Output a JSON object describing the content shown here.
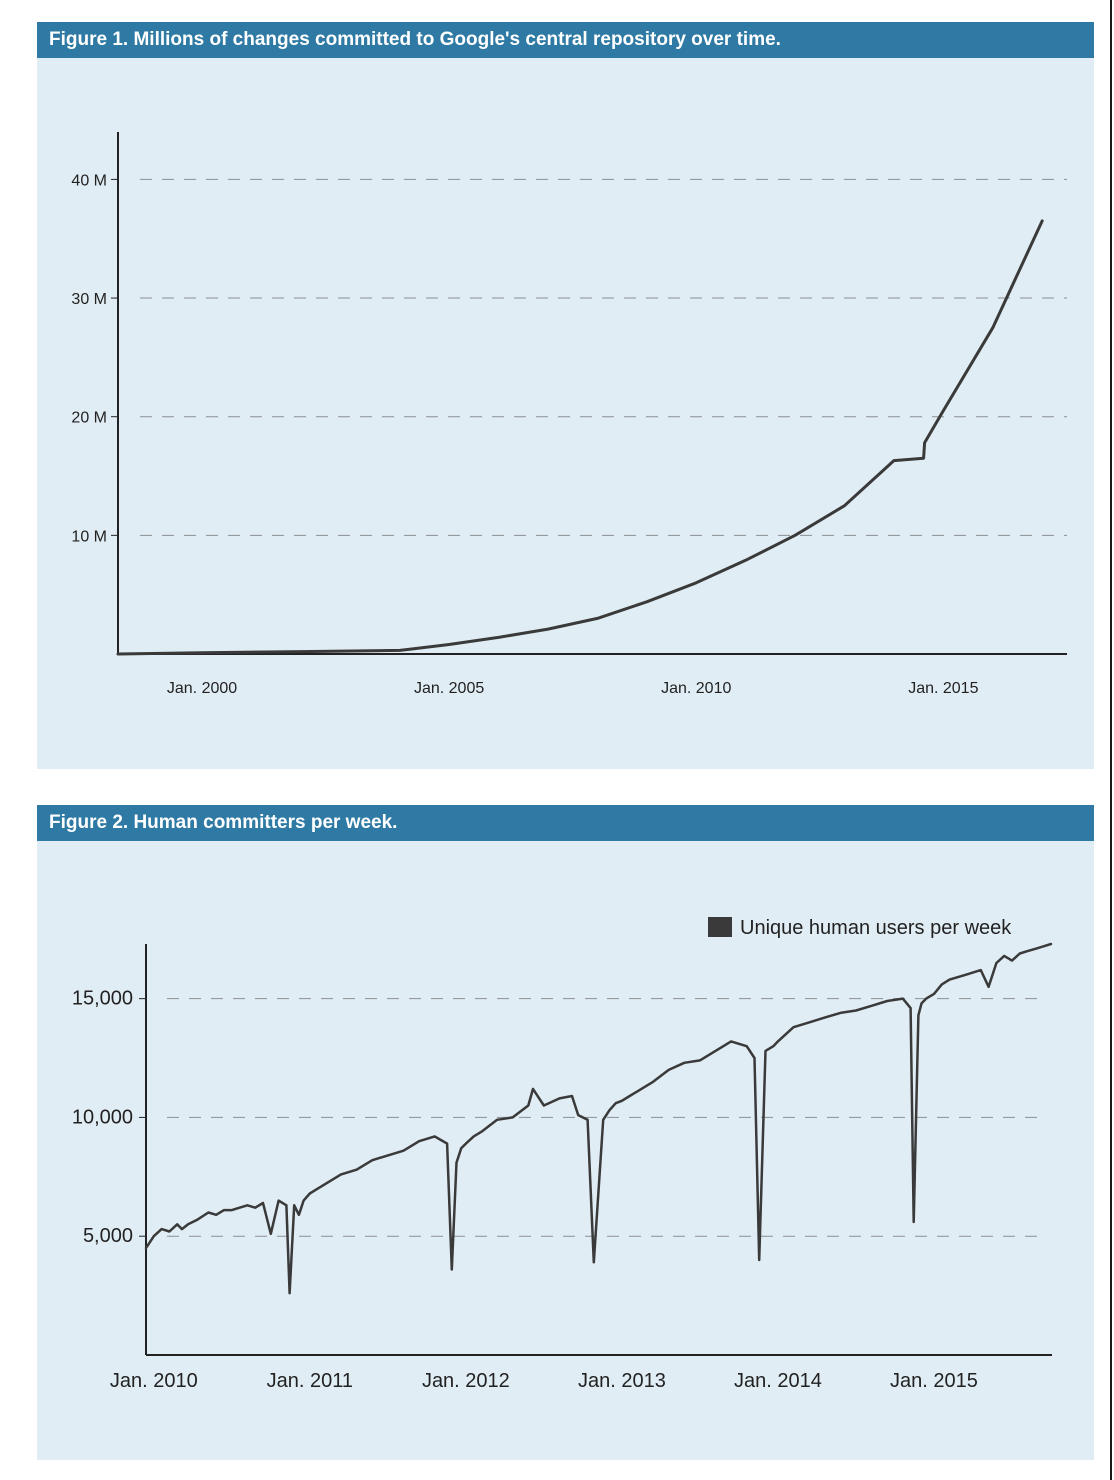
{
  "colors": {
    "header_bg": "#2f7aa4",
    "panel_bg": "#e1edf4",
    "line": "#3a3a3a",
    "grid": "#8a8f93",
    "legend_swatch": "#3a3a3a"
  },
  "chart_data": [
    {
      "type": "line",
      "title": "Figure 1. Millions of changes committed to Google's central repository over time.",
      "xlabel": "",
      "ylabel": "",
      "x_unit": "year",
      "xlim": [
        1998.3,
        2017.3
      ],
      "ylim": [
        0,
        44.5
      ],
      "x_ticks": [
        {
          "value": 2000,
          "label": "Jan. 2000"
        },
        {
          "value": 2005,
          "label": "Jan. 2005"
        },
        {
          "value": 2010,
          "label": "Jan. 2010"
        },
        {
          "value": 2015,
          "label": "Jan. 2015"
        }
      ],
      "y_ticks": [
        {
          "value": 10,
          "label": "10 M"
        },
        {
          "value": 20,
          "label": "20 M"
        },
        {
          "value": 30,
          "label": "30 M"
        },
        {
          "value": 40,
          "label": "40 M"
        }
      ],
      "grid": "horizontal-dashed",
      "series": [
        {
          "x": [
            1998.3,
            2000,
            2002,
            2004,
            2004.2,
            2005,
            2006,
            2007,
            2008,
            2009,
            2010,
            2011,
            2012,
            2013,
            2014,
            2014.6,
            2014.62,
            2015,
            2016,
            2017
          ],
          "y": [
            0,
            0.1,
            0.2,
            0.3,
            0.4,
            0.8,
            1.4,
            2.1,
            3.0,
            4.4,
            6.0,
            7.9,
            10.0,
            12.5,
            16.3,
            16.5,
            17.8,
            20.5,
            27.5,
            36.5
          ]
        }
      ]
    },
    {
      "type": "line",
      "title": "Figure 2. Human committers per week.",
      "xlabel": "",
      "ylabel": "",
      "x_unit": "year",
      "xlim": [
        2009.95,
        2015.75
      ],
      "ylim": [
        0,
        17300
      ],
      "x_ticks": [
        {
          "value": 2010,
          "label": "Jan. 2010"
        },
        {
          "value": 2011,
          "label": "Jan. 2011"
        },
        {
          "value": 2012,
          "label": "Jan. 2012"
        },
        {
          "value": 2013,
          "label": "Jan. 2013"
        },
        {
          "value": 2014,
          "label": "Jan. 2014"
        },
        {
          "value": 2015,
          "label": "Jan. 2015"
        }
      ],
      "y_ticks": [
        {
          "value": 5000,
          "label": "5,000"
        },
        {
          "value": 10000,
          "label": "10,000"
        },
        {
          "value": 15000,
          "label": "15,000"
        }
      ],
      "grid": "horizontal-dashed",
      "legend": {
        "position": "top-right",
        "entries": [
          "Unique human users per week"
        ]
      },
      "series": [
        {
          "name": "Unique human users per week",
          "x": [
            2009.95,
            2010.0,
            2010.05,
            2010.1,
            2010.15,
            2010.18,
            2010.22,
            2010.28,
            2010.35,
            2010.4,
            2010.45,
            2010.5,
            2010.55,
            2010.6,
            2010.65,
            2010.7,
            2010.75,
            2010.8,
            2010.85,
            2010.87,
            2010.9,
            2010.93,
            2010.96,
            2011.0,
            2011.05,
            2011.1,
            2011.2,
            2011.3,
            2011.4,
            2011.5,
            2011.6,
            2011.7,
            2011.8,
            2011.88,
            2011.91,
            2011.94,
            2011.97,
            2012.0,
            2012.05,
            2012.1,
            2012.2,
            2012.3,
            2012.4,
            2012.43,
            2012.47,
            2012.5,
            2012.6,
            2012.68,
            2012.72,
            2012.78,
            2012.82,
            2012.88,
            2012.92,
            2012.96,
            2013.0,
            2013.05,
            2013.1,
            2013.2,
            2013.3,
            2013.4,
            2013.5,
            2013.6,
            2013.7,
            2013.8,
            2013.85,
            2013.88,
            2013.92,
            2013.97,
            2014.0,
            2014.05,
            2014.1,
            2014.2,
            2014.3,
            2014.4,
            2014.5,
            2014.6,
            2014.7,
            2014.8,
            2014.85,
            2014.87,
            2014.9,
            2014.92,
            2014.95,
            2015.0,
            2015.05,
            2015.1,
            2015.2,
            2015.3,
            2015.35,
            2015.4,
            2015.45,
            2015.5,
            2015.55,
            2015.6,
            2015.65,
            2015.7,
            2015.75
          ],
          "y": [
            4500,
            5000,
            5300,
            5200,
            5500,
            5300,
            5500,
            5700,
            6000,
            5900,
            6100,
            6100,
            6200,
            6300,
            6200,
            6400,
            5100,
            6500,
            6300,
            2600,
            6300,
            5900,
            6500,
            6800,
            7000,
            7200,
            7600,
            7800,
            8200,
            8400,
            8600,
            9000,
            9200,
            8900,
            3600,
            8100,
            8700,
            8900,
            9200,
            9400,
            9900,
            10000,
            10500,
            11200,
            10800,
            10500,
            10800,
            10900,
            10100,
            9900,
            3900,
            9900,
            10300,
            10600,
            10700,
            10900,
            11100,
            11500,
            12000,
            12300,
            12400,
            12800,
            13200,
            13000,
            12500,
            4000,
            12800,
            13000,
            13200,
            13500,
            13800,
            14000,
            14200,
            14400,
            14500,
            14700,
            14900,
            15000,
            14600,
            5600,
            14300,
            14800,
            15000,
            15200,
            15600,
            15800,
            16000,
            16200,
            15500,
            16500,
            16800,
            16600,
            16900,
            17000,
            17100,
            17200,
            17300
          ]
        }
      ]
    }
  ]
}
